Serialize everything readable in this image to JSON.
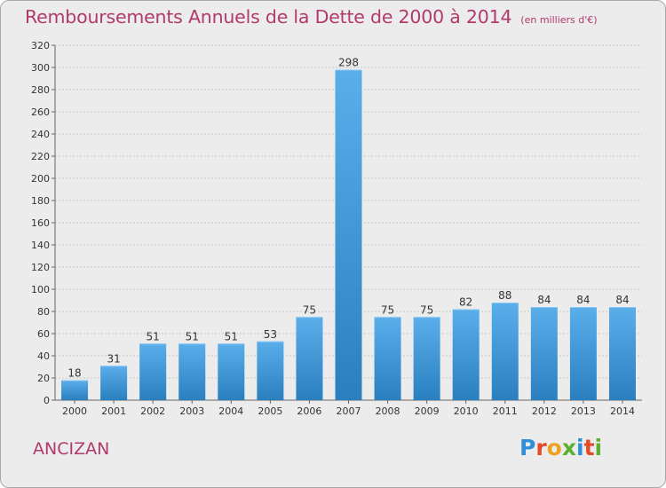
{
  "header": {
    "title": "Remboursements Annuels de la Dette de 2000 à 2014",
    "unit": "(en milliers d'€)"
  },
  "footer": {
    "commune": "ANCIZAN",
    "logo_text": "Proxiti",
    "logo_colors": [
      "#2f8fd8",
      "#e24a2a",
      "#f0a020",
      "#5bb030",
      "#2f8fd8",
      "#e24a2a",
      "#5bb030"
    ]
  },
  "chart_data": {
    "type": "bar",
    "title": "Remboursements Annuels de la Dette de 2000 à 2014",
    "subtitle": "(en milliers d'€)",
    "categories": [
      "2000",
      "2001",
      "2002",
      "2003",
      "2004",
      "2005",
      "2006",
      "2007",
      "2008",
      "2009",
      "2010",
      "2011",
      "2012",
      "2013",
      "2014"
    ],
    "values": [
      18,
      31,
      51,
      51,
      51,
      53,
      75,
      298,
      75,
      75,
      82,
      88,
      84,
      84,
      84
    ],
    "ylim": [
      0,
      320
    ],
    "yticks": [
      0,
      20,
      40,
      60,
      80,
      100,
      120,
      140,
      160,
      180,
      200,
      220,
      240,
      260,
      280,
      300,
      320
    ],
    "grid": true,
    "bar_color": "#3d97d8",
    "bar_color_light": "#5aaeea",
    "bar_color_dark": "#2a7fbf",
    "xlabel": "",
    "ylabel": ""
  }
}
